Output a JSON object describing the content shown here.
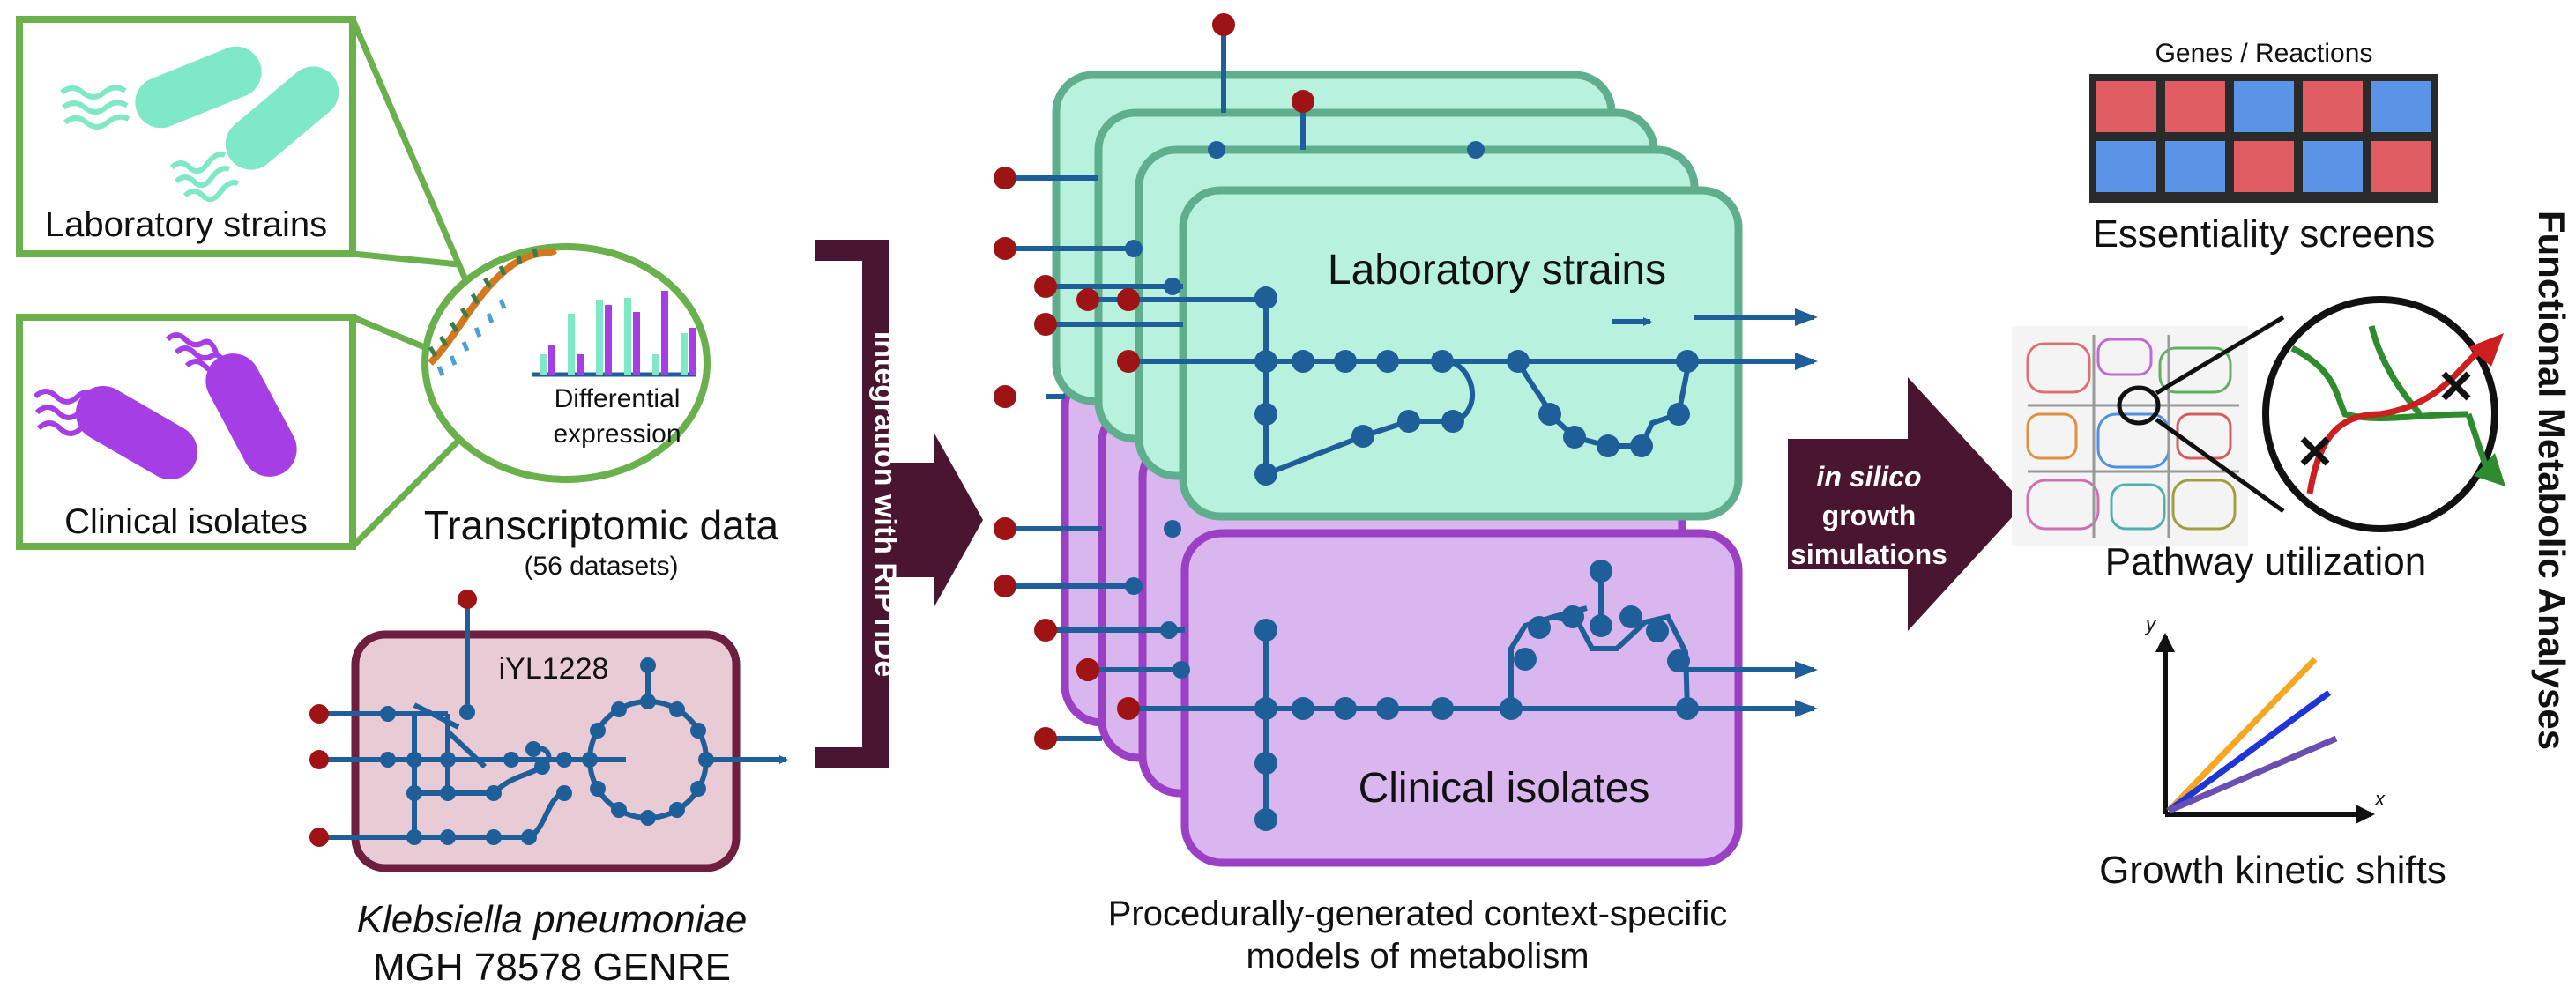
{
  "colors": {
    "green_frame": "#6ab04c",
    "lab_fill": "#b8f2de",
    "lab_stroke": "#5fae8e",
    "clin_fill": "#d9b6ee",
    "clin_stroke": "#9b3fc4",
    "genre_fill": "#e9cbd6",
    "genre_stroke": "#6e1f3f",
    "dark_maroon": "#4a1530",
    "network": "#1f5f99",
    "node_red": "#9e1414",
    "lab_bacteria": "#7fe8c6",
    "clin_bacteria": "#a63ee6",
    "heat_red": "#e05c63",
    "heat_blue": "#5b93e6",
    "line_orange": "#f5a623",
    "line_blue": "#1f35d6",
    "line_purple": "#6b4fb0"
  },
  "left_panel": {
    "lab_label": "Laboratory strains",
    "clin_label": "Clinical isolates",
    "diff_line1": "Differential",
    "diff_line2": "expression",
    "transcriptomic_title": "Transcriptomic data",
    "transcriptomic_sub": "(56 datasets)",
    "genre_model_name": "iYL1228",
    "genre_caption_line1": "Klebsiella pneumoniae",
    "genre_caption_line2": "MGH 78578 GENRE"
  },
  "integration": {
    "label": "Integration with RIPTiDe"
  },
  "middle_panel": {
    "lab_label": "Laboratory strains",
    "clin_label": "Clinical isolates",
    "caption_line1": "Procedurally-generated context-specific",
    "caption_line2": "models of metabolism"
  },
  "simulation_arrow": {
    "line1": "in silico",
    "line2": "growth",
    "line3": "simulations"
  },
  "right_panel": {
    "heatmap_title": "Genes / Reactions",
    "heatmap_cells": [
      [
        "red",
        "red",
        "blue",
        "red",
        "blue"
      ],
      [
        "blue",
        "blue",
        "red",
        "blue",
        "red"
      ]
    ],
    "essentiality_label": "Essentiality screens",
    "pathway_label": "Pathway utilization",
    "axis_y": "y",
    "axis_x": "x",
    "growth_label": "Growth kinetic shifts",
    "vertical_title": "Functional Metabolic Analyses"
  }
}
